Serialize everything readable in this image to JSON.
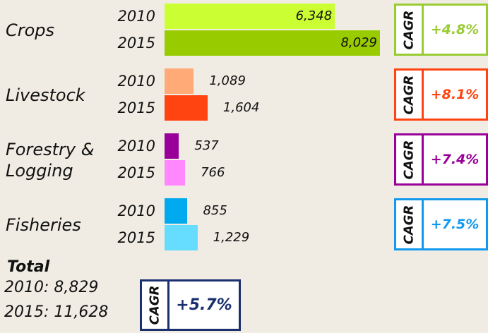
{
  "chart_data": {
    "type": "bar",
    "orientation": "horizontal",
    "categories": [
      "Crops",
      "Livestock",
      "Forestry & Logging",
      "Fisheries"
    ],
    "series": [
      {
        "name": "2010",
        "values": [
          6348,
          1089,
          537,
          855
        ],
        "value_labels": [
          "6,348",
          "1,089",
          "537",
          "855"
        ],
        "colors": [
          "#ccff33",
          "#ffaa77",
          "#990099",
          "#00aaee"
        ]
      },
      {
        "name": "2015",
        "values": [
          8029,
          1604,
          766,
          1229
        ],
        "value_labels": [
          "8,029",
          "1,604",
          "766",
          "1,229"
        ],
        "colors": [
          "#99cc00",
          "#ff4411",
          "#ff88ff",
          "#66ddff"
        ]
      }
    ],
    "cagr_title": "CAGR",
    "cagr": {
      "values": [
        4.8,
        8.1,
        7.4,
        7.5
      ],
      "value_labels": [
        "+4.8%",
        "+8.1%",
        "+7.4%",
        "+7.5%"
      ],
      "colors": [
        "#99cc33",
        "#ff4411",
        "#990099",
        "#1199ee"
      ]
    },
    "total": {
      "title": "Total",
      "values": [
        8829,
        11628
      ],
      "value_labels": [
        "2010: 8,829",
        "2015: 11,628"
      ],
      "cagr": 5.7,
      "cagr_label": "+5.7%",
      "color": "#1a2f6e"
    }
  }
}
